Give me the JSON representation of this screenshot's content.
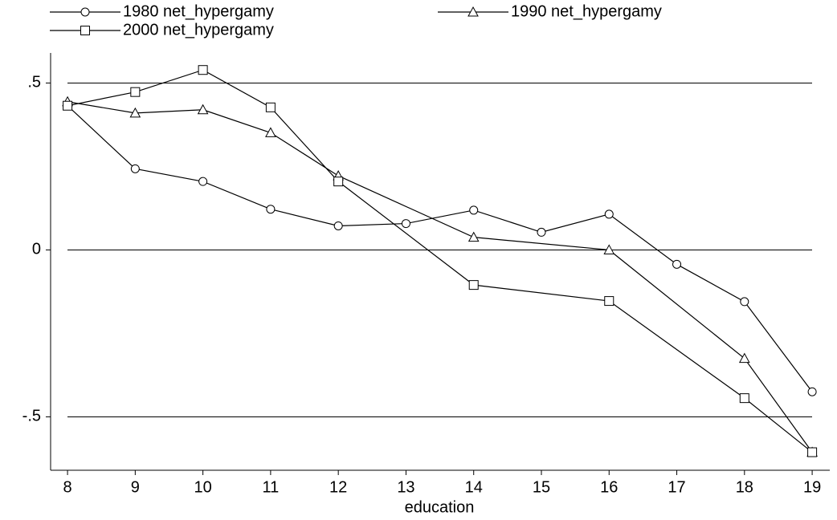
{
  "chart_data": {
    "type": "line",
    "x_label": "education",
    "xlim": [
      7.75,
      19.26
    ],
    "xticks": [
      8,
      9,
      10,
      11,
      12,
      13,
      14,
      15,
      16,
      17,
      18,
      19
    ],
    "ylim": [
      -0.66,
      0.59
    ],
    "yticks": [
      {
        "value": 0.5,
        "label": ".5"
      },
      0,
      {
        "value": -0.5,
        "label": "-.5"
      }
    ],
    "grid": true,
    "legend": "top",
    "series": [
      {
        "name": "1980 net_hypergamy",
        "color": "#000000",
        "marker": "circle",
        "x": [
          8,
          9,
          10,
          11,
          12,
          13,
          14,
          15,
          16,
          17,
          18,
          19
        ],
        "values": [
          0.432,
          0.243,
          0.205,
          0.122,
          0.072,
          0.079,
          0.119,
          0.053,
          0.107,
          -0.043,
          -0.155,
          -0.425
        ]
      },
      {
        "name": "1990 net_hypergamy",
        "color": "#000000",
        "marker": "triangle",
        "x": [
          8,
          9,
          10,
          11,
          12,
          14,
          16,
          18,
          19
        ],
        "values": [
          0.444,
          0.41,
          0.42,
          0.351,
          0.222,
          0.038,
          0.0,
          -0.325,
          -0.606
        ]
      },
      {
        "name": "2000 net_hypergamy",
        "color": "#000000",
        "marker": "square",
        "x": [
          8,
          9,
          10,
          11,
          12,
          14,
          16,
          18,
          19
        ],
        "values": [
          0.432,
          0.473,
          0.539,
          0.427,
          0.205,
          -0.105,
          -0.153,
          -0.444,
          -0.606
        ]
      }
    ]
  }
}
